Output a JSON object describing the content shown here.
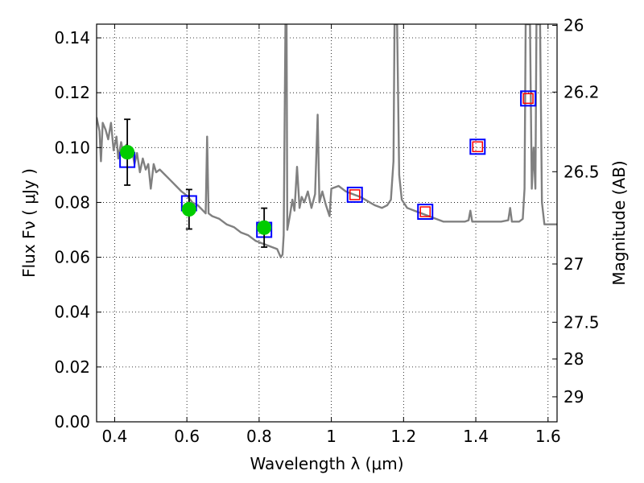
{
  "chart_data": {
    "type": "scatter",
    "xlabel": "Wavelength  λ (μm)",
    "ylabel": "Flux  Fν  ( μJy )",
    "ylabel_right": "Magnitude (AB)",
    "xlim": [
      0.35,
      1.625
    ],
    "ylim": [
      0.0,
      0.145
    ],
    "grid": true,
    "x_ticks": [
      {
        "value": 0.4,
        "label": "0.4"
      },
      {
        "value": 0.6,
        "label": "0.6"
      },
      {
        "value": 0.8,
        "label": "0.8"
      },
      {
        "value": 1.0,
        "label": "1"
      },
      {
        "value": 1.2,
        "label": "1.2"
      },
      {
        "value": 1.4,
        "label": "1.4"
      },
      {
        "value": 1.6,
        "label": "1.6"
      }
    ],
    "y_ticks": [
      {
        "value": 0.0,
        "label": "0.00"
      },
      {
        "value": 0.02,
        "label": "0.02"
      },
      {
        "value": 0.04,
        "label": "0.04"
      },
      {
        "value": 0.06,
        "label": "0.06"
      },
      {
        "value": 0.08,
        "label": "0.08"
      },
      {
        "value": 0.1,
        "label": "0.10"
      },
      {
        "value": 0.12,
        "label": "0.12"
      },
      {
        "value": 0.14,
        "label": "0.14"
      }
    ],
    "right_ticks": [
      {
        "value": 26,
        "label": "26"
      },
      {
        "value": 26.2,
        "label": "26.2"
      },
      {
        "value": 26.5,
        "label": "26.5"
      },
      {
        "value": 27,
        "label": "27"
      },
      {
        "value": 27.5,
        "label": "27.5"
      },
      {
        "value": 28,
        "label": "28"
      },
      {
        "value": 29,
        "label": "29"
      }
    ],
    "colors": {
      "observed": "#00cc00",
      "model_box": "#0000ff",
      "model_inner": "#ff0000",
      "spectrum": "#808080",
      "errorbar": "#000000"
    },
    "observed": [
      {
        "x": 0.435,
        "y": 0.0983,
        "err": 0.012
      },
      {
        "x": 0.606,
        "y": 0.0775,
        "err": 0.0072
      },
      {
        "x": 0.814,
        "y": 0.0708,
        "err": 0.0071
      }
    ],
    "model_bands": [
      {
        "x": 0.435,
        "y": 0.0955,
        "inner": false
      },
      {
        "x": 0.606,
        "y": 0.0797,
        "inner": false
      },
      {
        "x": 0.814,
        "y": 0.07,
        "inner": false
      },
      {
        "x": 1.065,
        "y": 0.0828,
        "inner": true
      },
      {
        "x": 1.26,
        "y": 0.0766,
        "inner": true
      },
      {
        "x": 1.405,
        "y": 0.1003,
        "inner": true
      },
      {
        "x": 1.545,
        "y": 0.1179,
        "inner": true
      }
    ],
    "spectrum": [
      [
        0.35,
        0.111
      ],
      [
        0.358,
        0.106
      ],
      [
        0.362,
        0.095
      ],
      [
        0.367,
        0.109
      ],
      [
        0.375,
        0.1065
      ],
      [
        0.382,
        0.103
      ],
      [
        0.39,
        0.109
      ],
      [
        0.397,
        0.099
      ],
      [
        0.405,
        0.104
      ],
      [
        0.41,
        0.096
      ],
      [
        0.418,
        0.102
      ],
      [
        0.425,
        0.097
      ],
      [
        0.432,
        0.101
      ],
      [
        0.44,
        0.097
      ],
      [
        0.448,
        0.099
      ],
      [
        0.455,
        0.094
      ],
      [
        0.462,
        0.098
      ],
      [
        0.47,
        0.091
      ],
      [
        0.478,
        0.096
      ],
      [
        0.486,
        0.092
      ],
      [
        0.493,
        0.094
      ],
      [
        0.5,
        0.085
      ],
      [
        0.508,
        0.094
      ],
      [
        0.515,
        0.091
      ],
      [
        0.525,
        0.092
      ],
      [
        0.54,
        0.09
      ],
      [
        0.555,
        0.088
      ],
      [
        0.57,
        0.086
      ],
      [
        0.585,
        0.084
      ],
      [
        0.6,
        0.0825
      ],
      [
        0.615,
        0.08
      ],
      [
        0.63,
        0.079
      ],
      [
        0.645,
        0.077
      ],
      [
        0.652,
        0.076
      ],
      [
        0.656,
        0.104
      ],
      [
        0.66,
        0.076
      ],
      [
        0.67,
        0.075
      ],
      [
        0.69,
        0.074
      ],
      [
        0.71,
        0.072
      ],
      [
        0.73,
        0.071
      ],
      [
        0.75,
        0.069
      ],
      [
        0.77,
        0.068
      ],
      [
        0.79,
        0.066
      ],
      [
        0.81,
        0.065
      ],
      [
        0.83,
        0.064
      ],
      [
        0.85,
        0.063
      ],
      [
        0.86,
        0.06
      ],
      [
        0.865,
        0.061
      ],
      [
        0.868,
        0.068
      ],
      [
        0.873,
        0.145
      ],
      [
        0.876,
        0.145
      ],
      [
        0.878,
        0.07
      ],
      [
        0.885,
        0.075
      ],
      [
        0.892,
        0.081
      ],
      [
        0.898,
        0.077
      ],
      [
        0.905,
        0.093
      ],
      [
        0.912,
        0.078
      ],
      [
        0.918,
        0.082
      ],
      [
        0.925,
        0.08
      ],
      [
        0.935,
        0.084
      ],
      [
        0.945,
        0.078
      ],
      [
        0.955,
        0.083
      ],
      [
        0.962,
        0.112
      ],
      [
        0.967,
        0.08
      ],
      [
        0.975,
        0.084
      ],
      [
        0.985,
        0.079
      ],
      [
        0.995,
        0.075
      ],
      [
        1.0,
        0.085
      ],
      [
        1.02,
        0.086
      ],
      [
        1.04,
        0.084
      ],
      [
        1.06,
        0.083
      ],
      [
        1.08,
        0.082
      ],
      [
        1.1,
        0.0805
      ],
      [
        1.12,
        0.079
      ],
      [
        1.14,
        0.078
      ],
      [
        1.155,
        0.079
      ],
      [
        1.165,
        0.081
      ],
      [
        1.172,
        0.095
      ],
      [
        1.175,
        0.145
      ],
      [
        1.182,
        0.145
      ],
      [
        1.188,
        0.09
      ],
      [
        1.195,
        0.081
      ],
      [
        1.21,
        0.078
      ],
      [
        1.23,
        0.077
      ],
      [
        1.25,
        0.076
      ],
      [
        1.27,
        0.075
      ],
      [
        1.29,
        0.074
      ],
      [
        1.31,
        0.073
      ],
      [
        1.33,
        0.073
      ],
      [
        1.35,
        0.073
      ],
      [
        1.37,
        0.073
      ],
      [
        1.38,
        0.0735
      ],
      [
        1.385,
        0.077
      ],
      [
        1.39,
        0.073
      ],
      [
        1.41,
        0.073
      ],
      [
        1.44,
        0.073
      ],
      [
        1.47,
        0.073
      ],
      [
        1.49,
        0.0735
      ],
      [
        1.495,
        0.078
      ],
      [
        1.5,
        0.073
      ],
      [
        1.52,
        0.073
      ],
      [
        1.53,
        0.074
      ],
      [
        1.535,
        0.085
      ],
      [
        1.538,
        0.145
      ],
      [
        1.55,
        0.145
      ],
      [
        1.555,
        0.085
      ],
      [
        1.56,
        0.1
      ],
      [
        1.565,
        0.085
      ],
      [
        1.568,
        0.145
      ],
      [
        1.578,
        0.145
      ],
      [
        1.583,
        0.08
      ],
      [
        1.59,
        0.072
      ],
      [
        1.6,
        0.072
      ],
      [
        1.625,
        0.072
      ]
    ]
  }
}
